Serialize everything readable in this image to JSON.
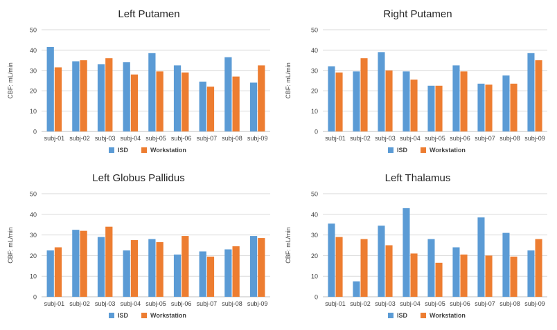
{
  "chart_data": [
    {
      "type": "bar",
      "title": "Left Putamen",
      "xlabel": "",
      "ylabel": "CBF: mL/min",
      "ylim": [
        0,
        50
      ],
      "yticks": [
        0,
        10,
        20,
        30,
        40,
        50
      ],
      "grid": true,
      "legend": "bottom-center",
      "categories": [
        "subj-01",
        "subj-02",
        "subj-03",
        "subj-04",
        "subj-05",
        "subj-06",
        "subj-07",
        "subj-08",
        "subj-09"
      ],
      "series": [
        {
          "name": "ISD",
          "color": "#5b9bd5",
          "values": [
            41.5,
            34.5,
            33,
            34,
            38.5,
            32.5,
            24.5,
            36.5,
            24
          ]
        },
        {
          "name": "Workstation",
          "color": "#ed7d31",
          "values": [
            31.5,
            35,
            36,
            28,
            29.5,
            29,
            22,
            27,
            32.5
          ]
        }
      ]
    },
    {
      "type": "bar",
      "title": "Right Putamen",
      "xlabel": "",
      "ylabel": "CBF: mL/min",
      "ylim": [
        0,
        50
      ],
      "yticks": [
        0,
        10,
        20,
        30,
        40,
        50
      ],
      "grid": true,
      "legend": "bottom-center",
      "categories": [
        "subj-01",
        "subj-02",
        "subj-03",
        "subj-04",
        "subj-05",
        "subj-06",
        "subj-07",
        "subj-08",
        "subj-09"
      ],
      "series": [
        {
          "name": "ISD",
          "color": "#5b9bd5",
          "values": [
            32,
            29.5,
            39,
            29.5,
            22.5,
            32.5,
            23.5,
            27.5,
            38.5
          ]
        },
        {
          "name": "Workstation",
          "color": "#ed7d31",
          "values": [
            29,
            36,
            30,
            25.5,
            22.5,
            29.5,
            23,
            23.5,
            35
          ]
        }
      ]
    },
    {
      "type": "bar",
      "title": "Left Globus Pallidus",
      "xlabel": "",
      "ylabel": "CBF: mL/min",
      "ylim": [
        0,
        50
      ],
      "yticks": [
        0,
        10,
        20,
        30,
        40,
        50
      ],
      "grid": true,
      "legend": "bottom-center",
      "categories": [
        "subj-01",
        "subj-02",
        "subj-03",
        "subj-04",
        "subj-05",
        "subj-06",
        "subj-07",
        "subj-08",
        "subj-09"
      ],
      "series": [
        {
          "name": "ISD",
          "color": "#5b9bd5",
          "values": [
            22.5,
            32.5,
            29,
            22.5,
            28,
            20.5,
            22,
            23,
            29.5
          ]
        },
        {
          "name": "Workstation",
          "color": "#ed7d31",
          "values": [
            24,
            32,
            34,
            27.5,
            26.5,
            29.5,
            19.5,
            24.5,
            28.5
          ]
        }
      ]
    },
    {
      "type": "bar",
      "title": "Left Thalamus",
      "xlabel": "",
      "ylabel": "CBF: mL/min",
      "ylim": [
        0,
        50
      ],
      "yticks": [
        0,
        10,
        20,
        30,
        40,
        50
      ],
      "grid": true,
      "legend": "bottom-center",
      "categories": [
        "subj-01",
        "subj-02",
        "subj-03",
        "subj-04",
        "subj-05",
        "subj-06",
        "subj-07",
        "subj-08",
        "subj-09"
      ],
      "series": [
        {
          "name": "ISD",
          "color": "#5b9bd5",
          "values": [
            35.5,
            7.5,
            34.5,
            43,
            28,
            24,
            38.5,
            31,
            22.5
          ]
        },
        {
          "name": "Workstation",
          "color": "#ed7d31",
          "values": [
            29,
            28,
            25,
            21,
            16.5,
            20.5,
            20,
            19.5,
            28
          ]
        }
      ]
    }
  ]
}
